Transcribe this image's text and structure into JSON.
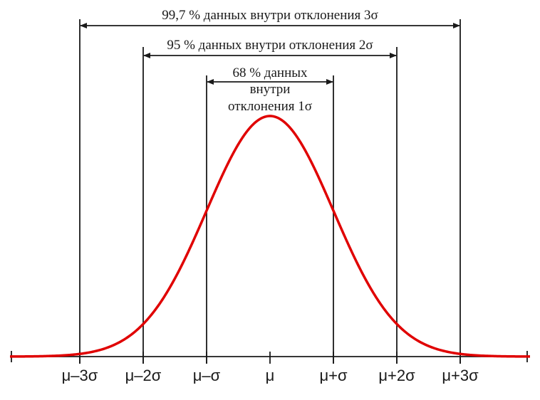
{
  "diagram": {
    "curve_color": "#e00000",
    "line_color": "#1a1a1a",
    "axis_ticks": [
      {
        "sigma": -3,
        "label": "μ–3σ"
      },
      {
        "sigma": -2,
        "label": "μ–2σ"
      },
      {
        "sigma": -1,
        "label": "μ–σ"
      },
      {
        "sigma": 0,
        "label": "μ"
      },
      {
        "sigma": 1,
        "label": "μ+σ"
      },
      {
        "sigma": 2,
        "label": "μ+2σ"
      },
      {
        "sigma": 3,
        "label": "μ+3σ"
      }
    ],
    "spans": [
      {
        "sigma": 3,
        "lines": [
          "99,7 % данных внутри отклонения 3σ"
        ]
      },
      {
        "sigma": 2,
        "lines": [
          "95 % данных внутри отклонения 2σ"
        ]
      },
      {
        "sigma": 1,
        "lines": [
          "68 % данных",
          "внутри",
          "отклонения 1σ"
        ]
      }
    ]
  }
}
